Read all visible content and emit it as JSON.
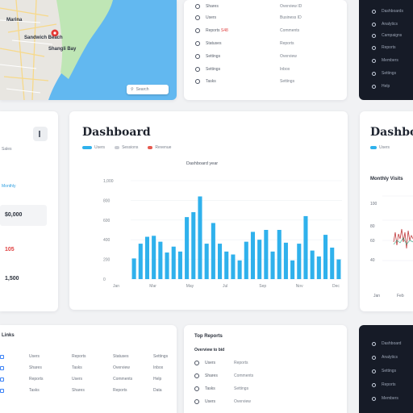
{
  "map": {
    "labels": [
      "Sandwich Beach",
      "Shangli Bay",
      "Marina"
    ],
    "search_placeholder": "Search"
  },
  "top_list": {
    "rows": [
      {
        "c1": "Shares",
        "c2": "Overview ID"
      },
      {
        "c1": "Users",
        "c2": "Business ID"
      },
      {
        "c1": "Reports",
        "c2": "Comments",
        "flag": "S48"
      },
      {
        "c1": "Statuses",
        "c2": "Reports"
      },
      {
        "c1": "Settings",
        "c2": "Overview"
      },
      {
        "c1": "Settings",
        "c2": "Inbox"
      },
      {
        "c1": "Tasks",
        "c2": "Settings"
      }
    ]
  },
  "side_list": {
    "items": [
      "Dashboards",
      "Analytics",
      "Campaigns",
      "Reports",
      "Members",
      "Settings",
      "Help"
    ]
  },
  "stats": {
    "small_label": "Sales",
    "link_label": "Monthly",
    "value1": "$0,000",
    "value2": "105",
    "value3": "1,500"
  },
  "dashboard": {
    "title": "Dashboard",
    "legend": [
      "Users",
      "Sessions",
      "Revenue"
    ],
    "chart_title": "Dashboard year"
  },
  "dashboard2": {
    "title": "Dashboard",
    "legend": "Users",
    "sub": "Monthly Visits",
    "ticks": [
      "100",
      "80",
      "60",
      "40"
    ],
    "xticks": [
      "Jan",
      "Feb"
    ]
  },
  "bottom_left": {
    "header": "Links",
    "rows": [
      [
        "Users",
        "Reports",
        "Statuses",
        "Settings"
      ],
      [
        "Shares",
        "Tasks",
        "Overview",
        "Inbox"
      ],
      [
        "Reports",
        "Users",
        "Comments",
        "Help"
      ],
      [
        "Tasks",
        "Shares",
        "Reports",
        "Data"
      ]
    ]
  },
  "bottom_mid": {
    "header": "Top Reports",
    "subheader": "Overview to bid",
    "rows": [
      {
        "c1": "Users",
        "c2": "Reports"
      },
      {
        "c1": "Shares",
        "c2": "Comments"
      },
      {
        "c1": "Tasks",
        "c2": "Settings"
      },
      {
        "c1": "Users",
        "c2": "Overview"
      }
    ]
  },
  "bottom_side": {
    "items": [
      "Dashboard",
      "Analytics",
      "Settings",
      "Reports",
      "Members"
    ]
  },
  "chart_data": {
    "type": "bar",
    "title": "Dashboard year",
    "ylabel": "",
    "xlabel": "",
    "yticks": [
      "1,000",
      "800",
      "600",
      "400",
      "200",
      "0"
    ],
    "xticks": [
      "Jan",
      "Mar",
      "May",
      "Jul",
      "Sep",
      "Nov",
      "Dec"
    ],
    "ylim": [
      0,
      1000
    ],
    "values": [
      210,
      360,
      430,
      440,
      380,
      270,
      330,
      280,
      630,
      680,
      840,
      360,
      570,
      360,
      280,
      250,
      190,
      380,
      480,
      400,
      500,
      280,
      500,
      370,
      190,
      360,
      640,
      290,
      230,
      450,
      320,
      200
    ],
    "color": "#2fb1ec"
  }
}
